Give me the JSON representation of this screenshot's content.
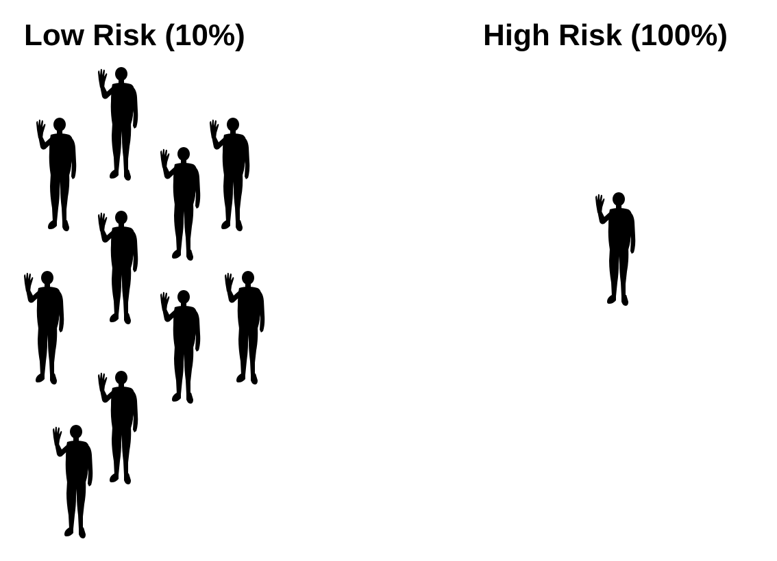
{
  "low_risk": {
    "title": "Low Risk (10%)",
    "people_count": 10,
    "icon": "waving-person-icon"
  },
  "high_risk": {
    "title": "High Risk (100%)",
    "people_count": 1,
    "icon": "waving-person-icon"
  },
  "colors": {
    "figure": "#000000",
    "background": "#ffffff",
    "text": "#000000"
  }
}
